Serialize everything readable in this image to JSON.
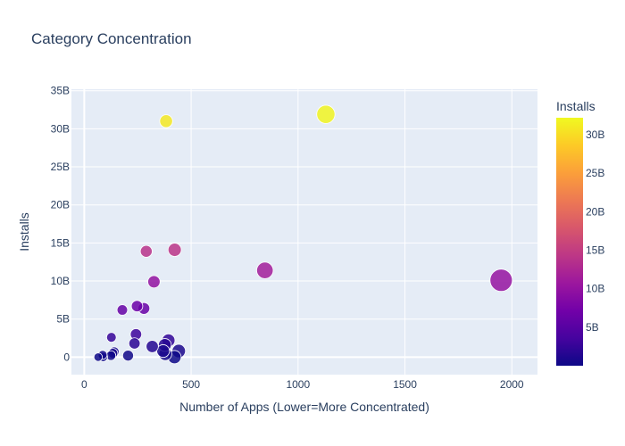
{
  "chart_data": {
    "type": "scatter",
    "title": "Category Concentration",
    "xlabel": "Number of Apps (Lower=More Concentrated)",
    "ylabel": "Installs",
    "xlim": [
      -60,
      2120
    ],
    "ylim": [
      -2.3,
      35.2
    ],
    "x_ticks": [
      0,
      500,
      1000,
      1500,
      2000
    ],
    "x_tick_labels": [
      "0",
      "500",
      "1000",
      "1500",
      "2000"
    ],
    "y_ticks": [
      0,
      5,
      10,
      15,
      20,
      25,
      30,
      35
    ],
    "y_tick_labels": [
      "0",
      "5B",
      "10B",
      "15B",
      "20B",
      "25B",
      "30B",
      "35B"
    ],
    "value_unit": "billions of installs",
    "grid": true,
    "colorbar": {
      "title": "Installs",
      "range": [
        0,
        32.2
      ],
      "ticks": [
        5,
        10,
        15,
        20,
        25,
        30
      ],
      "tick_labels": [
        "5B",
        "10B",
        "15B",
        "20B",
        "25B",
        "30B"
      ],
      "colors": [
        "#0d0887",
        "#46039f",
        "#7201a8",
        "#9c179e",
        "#bd3786",
        "#d8576b",
        "#ed7953",
        "#fb9f3a",
        "#fdca26",
        "#f0f921"
      ]
    },
    "points": [
      {
        "x": 1950,
        "y": 10.1
      },
      {
        "x": 1130,
        "y": 31.9
      },
      {
        "x": 383,
        "y": 31.0
      },
      {
        "x": 845,
        "y": 11.4
      },
      {
        "x": 423,
        "y": 14.1
      },
      {
        "x": 290,
        "y": 13.9
      },
      {
        "x": 326,
        "y": 9.9
      },
      {
        "x": 247,
        "y": 6.7
      },
      {
        "x": 279,
        "y": 6.4
      },
      {
        "x": 178,
        "y": 6.2
      },
      {
        "x": 242,
        "y": 3.0
      },
      {
        "x": 127,
        "y": 2.6
      },
      {
        "x": 235,
        "y": 1.8
      },
      {
        "x": 394,
        "y": 2.2
      },
      {
        "x": 377,
        "y": 1.6
      },
      {
        "x": 318,
        "y": 1.4
      },
      {
        "x": 442,
        "y": 0.8
      },
      {
        "x": 369,
        "y": 0.8
      },
      {
        "x": 379,
        "y": 0.4
      },
      {
        "x": 422,
        "y": 0.0
      },
      {
        "x": 205,
        "y": 0.2
      },
      {
        "x": 140,
        "y": 0.7
      },
      {
        "x": 134,
        "y": 0.5
      },
      {
        "x": 125,
        "y": 0.2
      },
      {
        "x": 86,
        "y": 0.3
      },
      {
        "x": 88,
        "y": 0.0
      },
      {
        "x": 65,
        "y": 0.0
      }
    ]
  }
}
